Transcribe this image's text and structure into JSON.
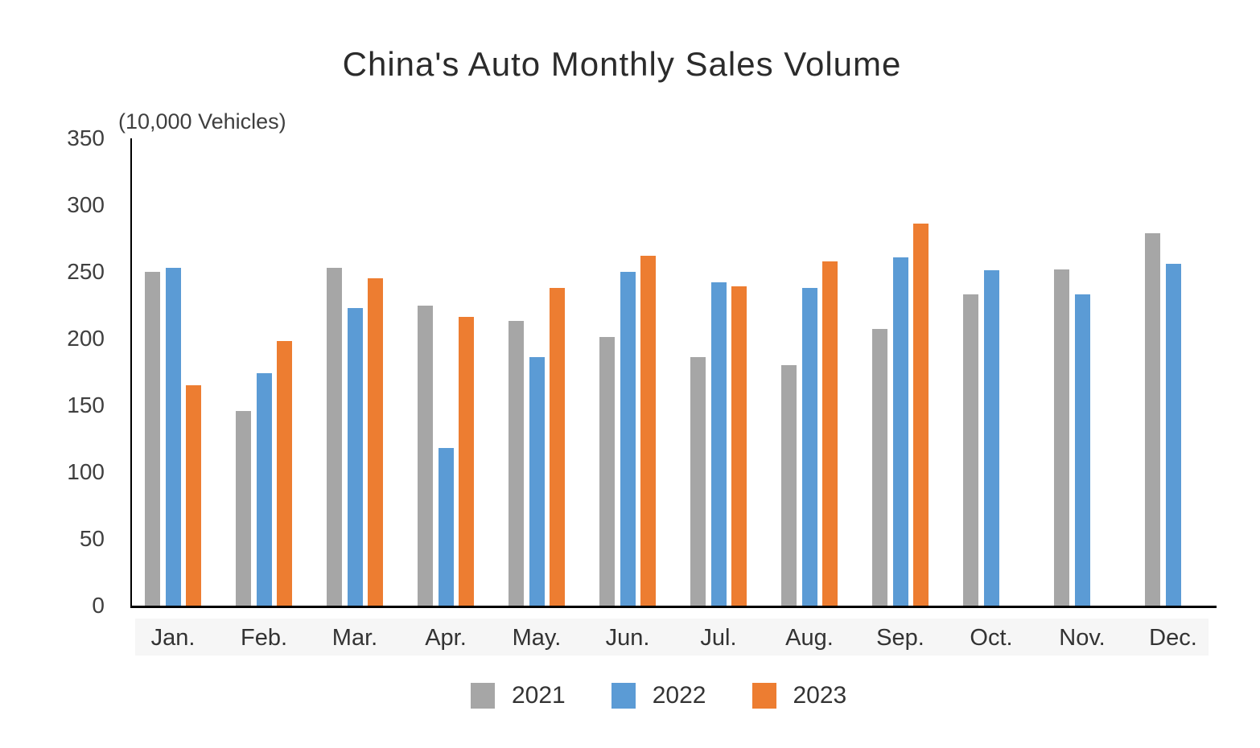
{
  "title": "China's Auto Monthly Sales Volume",
  "unit_label": "(10,000 Vehicles)",
  "chart_data": {
    "type": "bar",
    "categories": [
      "Jan.",
      "Feb.",
      "Mar.",
      "Apr.",
      "May.",
      "Jun.",
      "Jul.",
      "Aug.",
      "Sep.",
      "Oct.",
      "Nov.",
      "Dec."
    ],
    "series": [
      {
        "name": "2021",
        "color": "#A6A6A6",
        "values": [
          250,
          146,
          253,
          225,
          213,
          201,
          186,
          180,
          207,
          233,
          252,
          279
        ]
      },
      {
        "name": "2022",
        "color": "#5B9BD5",
        "values": [
          253,
          174,
          223,
          118,
          186,
          250,
          242,
          238,
          261,
          251,
          233,
          256
        ]
      },
      {
        "name": "2023",
        "color": "#ED7D31",
        "values": [
          165,
          198,
          245,
          216,
          238,
          262,
          239,
          258,
          286,
          null,
          null,
          null
        ]
      }
    ],
    "ylabel": "(10,000 Vehicles)",
    "ylim": [
      0,
      350
    ],
    "ytick_step": 50,
    "yticks": [
      0,
      50,
      100,
      150,
      200,
      250,
      300,
      350
    ],
    "grid": false,
    "legend_position": "bottom",
    "axis_color": "#000000",
    "text_color": "#3f3f3f"
  }
}
